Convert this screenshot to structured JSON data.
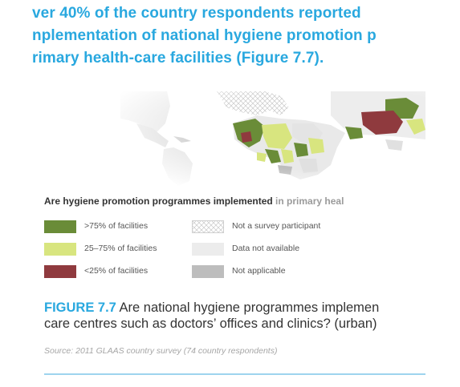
{
  "heading": {
    "line1": "ver 40% of the country respondents reported",
    "line2": "nplementation of national hygiene promotion p",
    "line3": "rimary health-care facilities (Figure 7.7)."
  },
  "legend": {
    "title_dark": "Are hygiene promotion programmes implemented",
    "title_light": " in primary heal",
    "items": [
      {
        "label": ">75% of facilities",
        "color": "#6a8c38"
      },
      {
        "label": "25–75% of facilities",
        "color": "#d8e57f"
      },
      {
        "label": "<25% of facilities",
        "color": "#8f3a3e"
      },
      {
        "label": "Not a survey participant",
        "color": "#ffffff"
      },
      {
        "label": "Data not available",
        "color": "#ececec"
      },
      {
        "label": "Not applicable",
        "color": "#bdbdbd"
      }
    ]
  },
  "figure": {
    "label": "FIGURE 7.7",
    "caption_line1": " Are national hygiene programmes implemen",
    "caption_line2": "care centres such as doctors’ offices and clinics? (urban)"
  },
  "source": "Source: 2011 GLAAS country survey (74 country respondents)"
}
